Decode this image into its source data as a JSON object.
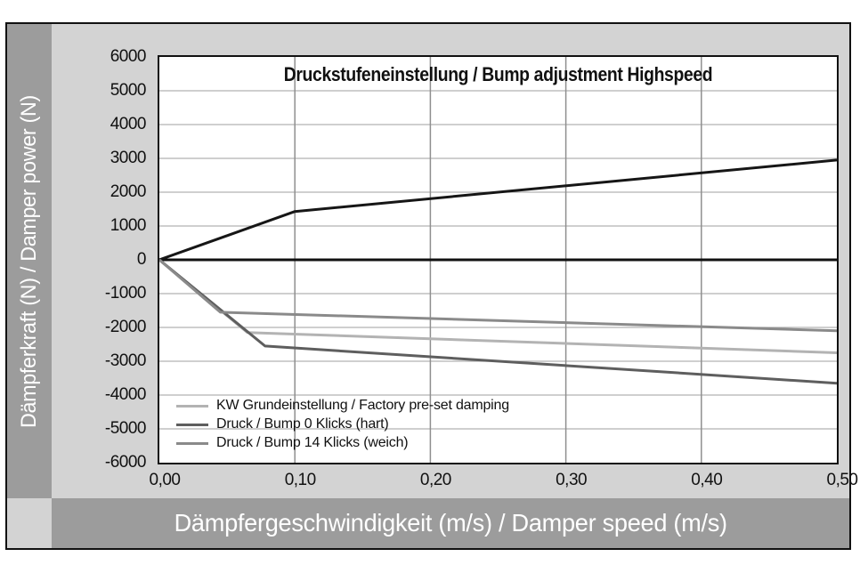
{
  "colors": {
    "frame_bg": "#d3d3d3",
    "band_bg": "#9c9c9c",
    "band_text": "#ffffff",
    "plot_bg": "#ffffff",
    "grid_horizontal": "#b2b2b2",
    "grid_vertical": "#8f8f8f",
    "axis_zero_line": "#111111",
    "text": "#111111"
  },
  "chart_data": {
    "type": "line",
    "title": "Druckstufeneinstellung / Bump adjustment Highspeed",
    "xlabel": "Dämpfergeschwindigkeit (m/s) / Damper speed (m/s)",
    "ylabel": "Dämpferkraft (N) / Damper power (N)",
    "xlim": [
      0,
      0.5
    ],
    "ylim": [
      -6000,
      6000
    ],
    "grid": true,
    "x_ticks": [
      "0,00",
      "0,10",
      "0,20",
      "0,30",
      "0,40",
      "0,50"
    ],
    "x_tick_values": [
      0,
      0.1,
      0.2,
      0.3,
      0.4,
      0.5
    ],
    "y_ticks": [
      "6000",
      "5000",
      "4000",
      "3000",
      "2000",
      "1000",
      "0",
      "-1000",
      "-2000",
      "-3000",
      "-4000",
      "-5000",
      "-6000"
    ],
    "y_tick_values": [
      6000,
      5000,
      4000,
      3000,
      2000,
      1000,
      0,
      -1000,
      -2000,
      -3000,
      -4000,
      -5000,
      -6000
    ],
    "legend_position": "inside-bottom-left",
    "legend_entries": [
      {
        "label": "KW Grundeinstellung / Factory pre-set damping",
        "color": "#b3b3b3"
      },
      {
        "label": "Druck / Bump 0 Klicks (hart)",
        "color": "#5e5e5e"
      },
      {
        "label": "Druck / Bump 14 Klicks (weich)",
        "color": "#8a8a8a"
      }
    ],
    "series": [
      {
        "legend_label": "",
        "color": "#161616",
        "width": 3,
        "points": [
          [
            0,
            0
          ],
          [
            0.1,
            1430
          ],
          [
            0.5,
            2950
          ]
        ]
      },
      {
        "legend_label": "KW Grundeinstellung / Factory pre-set damping",
        "color": "#b3b3b3",
        "width": 3,
        "points": [
          [
            0,
            0
          ],
          [
            0.065,
            -2150
          ],
          [
            0.5,
            -2750
          ]
        ]
      },
      {
        "legend_label": "Druck / Bump 0 Klicks (hart)",
        "color": "#5e5e5e",
        "width": 3,
        "points": [
          [
            0,
            0
          ],
          [
            0.078,
            -2550
          ],
          [
            0.5,
            -3650
          ]
        ]
      },
      {
        "legend_label": "Druck / Bump 14 Klicks (weich)",
        "color": "#8a8a8a",
        "width": 3,
        "points": [
          [
            0,
            0
          ],
          [
            0.045,
            -1550
          ],
          [
            0.5,
            -2100
          ]
        ]
      }
    ]
  }
}
